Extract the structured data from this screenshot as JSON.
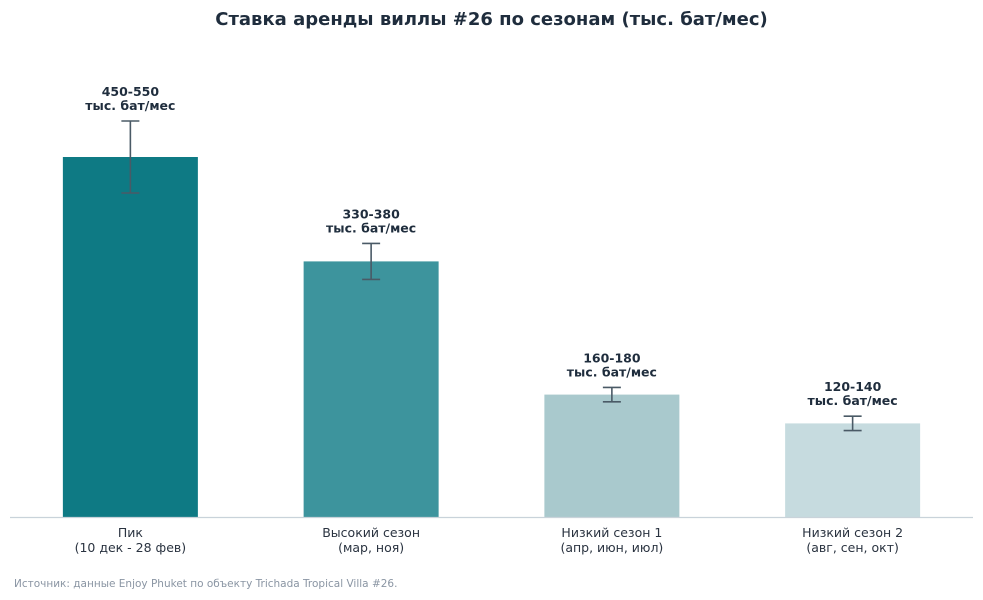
{
  "chart_data": {
    "type": "bar",
    "title": "Ставка аренды виллы #26 по сезонам (тыс. бат/мес)",
    "xlabel": "",
    "ylabel": "",
    "ylim": [
      0,
      600
    ],
    "grid": false,
    "legend": "none",
    "categories": [
      [
        "Пик",
        "(10 дек - 28 фев)"
      ],
      [
        "Высокий сезон",
        "(мар, ноя)"
      ],
      [
        "Низкий сезон 1",
        "(апр, июн, июл)"
      ],
      [
        "Низкий сезон 2",
        "(авг, сен, окт)"
      ]
    ],
    "values": [
      500,
      355,
      170,
      130
    ],
    "error_low": [
      450,
      330,
      160,
      120
    ],
    "error_high": [
      550,
      380,
      180,
      140
    ],
    "value_labels": [
      [
        "450-550",
        "тыс. бат/мес"
      ],
      [
        "330-380",
        "тыс. бат/мес"
      ],
      [
        "160-180",
        "тыс. бат/мес"
      ],
      [
        "120-140",
        "тыс. бат/мес"
      ]
    ],
    "colors": [
      "#0e7a84",
      "#3d949d",
      "#a9c9cd",
      "#c6dbdf"
    ],
    "error_bar_color": "#4a5a66",
    "axis_color": "#c9d3da",
    "source": "Источник: данные Enjoy Phuket по объекту Trichada Tropical Villa #26."
  }
}
